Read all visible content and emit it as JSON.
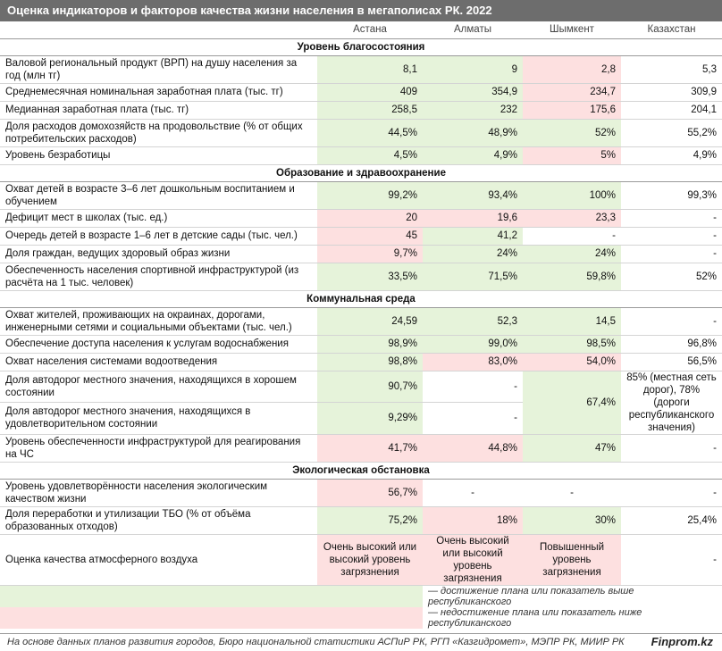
{
  "title": "Оценка индикаторов и факторов качества жизни населения в мегаполисах РК. 2022",
  "columns": [
    "Астана",
    "Алматы",
    "Шымкент",
    "Казахстан"
  ],
  "sections": {
    "s1": "Уровень благосостояния",
    "s2": "Образование и здравоохранение",
    "s3": "Коммунальная среда",
    "s4": "Экологическая обстановка"
  },
  "rows": {
    "r1": {
      "label": "Валовой региональный продукт (ВРП) на душу населения за год (млн тг)",
      "v": [
        "8,1",
        "9",
        "2,8",
        "5,3"
      ]
    },
    "r2": {
      "label": "Среднемесячная номинальная заработная плата (тыс. тг)",
      "v": [
        "409",
        "354,9",
        "234,7",
        "309,9"
      ]
    },
    "r3": {
      "label": "Медианная заработная плата (тыс. тг)",
      "v": [
        "258,5",
        "232",
        "175,6",
        "204,1"
      ]
    },
    "r4": {
      "label": "Доля расходов домохозяйств на продовольствие (% от общих потребительских расходов)",
      "v": [
        "44,5%",
        "48,9%",
        "52%",
        "55,2%"
      ]
    },
    "r5": {
      "label": "Уровень безработицы",
      "v": [
        "4,5%",
        "4,9%",
        "5%",
        "4,9%"
      ]
    },
    "r6": {
      "label": "Охват детей в возрасте 3–6 лет дошкольным воспитанием и обучением",
      "v": [
        "99,2%",
        "93,4%",
        "100%",
        "99,3%"
      ]
    },
    "r7": {
      "label": "Дефицит мест в школах (тыс. ед.)",
      "v": [
        "20",
        "19,6",
        "23,3",
        "-"
      ]
    },
    "r8": {
      "label": "Очередь детей в возрасте 1–6 лет в детские сады (тыс. чел.)",
      "v": [
        "45",
        "41,2",
        "-",
        "-"
      ]
    },
    "r9": {
      "label": "Доля граждан, ведущих здоровый образ жизни",
      "v": [
        "9,7%",
        "24%",
        "24%",
        "-"
      ]
    },
    "r10": {
      "label": "Обеспеченность населения спортивной инфраструктурой (из расчёта на 1 тыс. человек)",
      "v": [
        "33,5%",
        "71,5%",
        "59,8%",
        "52%"
      ]
    },
    "r11": {
      "label": "Охват жителей, проживающих на окраинах, дорогами, инженерными сетями и социальными объектами (тыс. чел.)",
      "v": [
        "24,59",
        "52,3",
        "14,5",
        "-"
      ]
    },
    "r12": {
      "label": "Обеспечение доступа населения к услугам водоснабжения",
      "v": [
        "98,9%",
        "99,0%",
        "98,5%",
        "96,8%"
      ]
    },
    "r13": {
      "label": "Охват населения системами водоотведения",
      "v": [
        "98,8%",
        "83,0%",
        "54,0%",
        "56,5%"
      ]
    },
    "r14": {
      "label": "Доля автодорог местного значения, находящихся в хорошем состоянии",
      "v": [
        "90,7%",
        "-"
      ]
    },
    "r15": {
      "label": "Доля автодорог местного значения, находящихся в удовлетворительном состоянии",
      "v": [
        "9,29%",
        "-"
      ]
    },
    "r1415": {
      "shymkent": "67,4%",
      "kz": "85% (местная сеть дорог), 78% (дороги республиканского значения)"
    },
    "r16": {
      "label": "Уровень обеспеченности инфраструктурой для реагирования на ЧС",
      "v": [
        "41,7%",
        "44,8%",
        "47%",
        "-"
      ]
    },
    "r17": {
      "label": "Уровень удовлетворённости населения экологическим качеством жизни",
      "v": [
        "56,7%",
        "-",
        "-",
        "-"
      ]
    },
    "r18": {
      "label": "Доля переработки и утилизации ТБО (% от объёма образованных отходов)",
      "v": [
        "75,2%",
        "18%",
        "30%",
        "25,4%"
      ]
    },
    "r19": {
      "label": "Оценка качества атмосферного воздуха",
      "v": [
        "Очень высокий или высокий уровень загрязнения",
        "Очень высокий или высокий уровень загрязнения",
        "Повышенный уровень загрязнения",
        "-"
      ]
    }
  },
  "legend": {
    "green": "— достижение плана или показатель выше республиканского",
    "red": "— недостижение плана или показатель ниже республиканского"
  },
  "footer": {
    "source": "На основе данных планов развития городов, Бюро национальной статистики АСПиР РК, РГП «Казгидромет», МЭПР РК, МИИР РК",
    "brand": "Finprom.kz"
  },
  "colors": {
    "header_bg": "#6d6d6d",
    "green": "#e6f3da",
    "red": "#fde0e0"
  }
}
